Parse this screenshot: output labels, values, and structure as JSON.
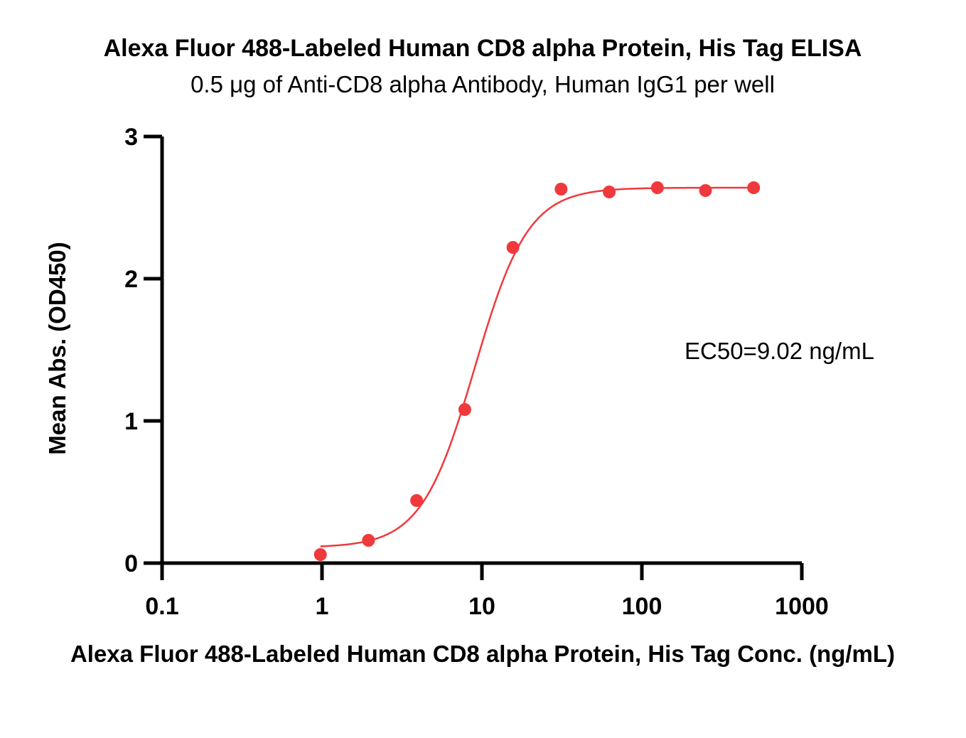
{
  "chart_data": {
    "type": "scatter",
    "title": "Alexa Fluor 488-Labeled Human CD8 alpha Protein, His Tag ELISA",
    "subtitle": "0.5 μg of Anti-CD8 alpha Antibody, Human IgG1 per well",
    "xlabel": "Alexa Fluor 488-Labeled Human CD8 alpha Protein, His Tag Conc. (ng/mL)",
    "ylabel": "Mean Abs. (OD450)",
    "x_scale": "log",
    "xlim": [
      0.1,
      1000
    ],
    "ylim": [
      0,
      3
    ],
    "x_ticks": [
      0.1,
      1,
      10,
      100,
      1000
    ],
    "x_tick_labels": [
      "0.1",
      "1",
      "10",
      "100",
      "1000"
    ],
    "y_ticks": [
      0,
      1,
      2,
      3
    ],
    "y_tick_labels": [
      "0",
      "1",
      "2",
      "3"
    ],
    "grid": false,
    "annotation": "EC50=9.02 ng/mL",
    "color": "#f0393c",
    "series": [
      {
        "x": [
          0.977,
          1.953,
          3.906,
          7.813,
          15.625,
          31.25,
          62.5,
          125,
          250,
          500
        ],
        "y": [
          0.06,
          0.16,
          0.44,
          1.08,
          2.22,
          2.63,
          2.61,
          2.64,
          2.62,
          2.64
        ]
      }
    ],
    "fit": {
      "bottom": 0.11,
      "top": 2.64,
      "ec50": 9.02,
      "hill": 2.6,
      "x_range": [
        0.977,
        500
      ]
    }
  }
}
